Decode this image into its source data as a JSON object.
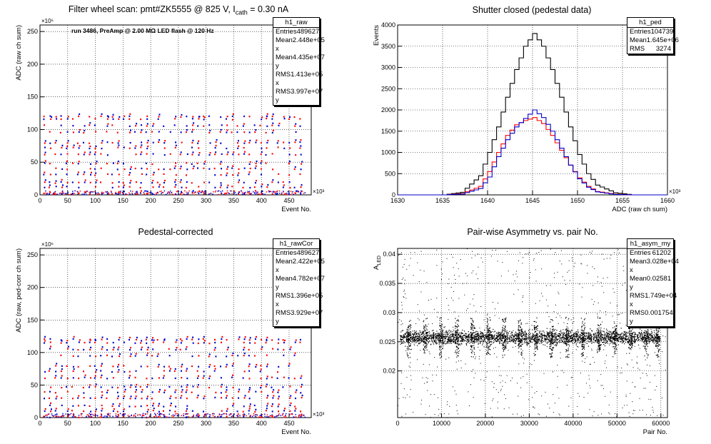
{
  "chart_data": [
    {
      "type": "scatter",
      "title_parts": {
        "a": "Filter wheel scan: pmt#ZK5555 @   825 V, I",
        "sub": "cath",
        "b": " = 0.30 nA"
      },
      "annotation": "run 3486, PreAmp @ 2.00 MΩ LED flash @  120 Hz",
      "ylabel": "ADC (raw ch sum)",
      "xlabel": "Event No.",
      "x_exponent": "×10³",
      "y_exponent": "×10⁶",
      "xlim": [
        0,
        490
      ],
      "ylim": [
        0,
        260
      ],
      "xticks": [
        0,
        50,
        100,
        150,
        200,
        250,
        300,
        350,
        400,
        450
      ],
      "yticks": [
        0,
        50,
        100,
        150,
        200,
        250
      ],
      "levels": [
        2,
        12,
        19,
        31,
        40,
        48,
        62,
        72,
        80,
        96,
        106,
        116,
        120
      ],
      "series": [
        {
          "values_from": "levels",
          "color": "#ff0000"
        },
        {
          "values_from": "levels",
          "color": "#0000cc"
        }
      ],
      "stats": {
        "name": "h1_raw",
        "rows": [
          [
            "Entries",
            "489627"
          ],
          [
            "Mean x",
            "2.448e+05"
          ],
          [
            "Mean y",
            "4.435e+07"
          ],
          [
            "RMS x",
            "1.413e+05"
          ],
          [
            "RMS y",
            "3.997e+07"
          ]
        ]
      }
    },
    {
      "type": "line",
      "title": "Shutter closed (pedestal data)",
      "ylabel": "Events",
      "xlabel": "ADC (raw ch sum)",
      "x_exponent": "×10³",
      "xlim": [
        1630,
        1660
      ],
      "ylim": [
        0,
        4000
      ],
      "xticks": [
        1630,
        1635,
        1640,
        1645,
        1650,
        1655,
        1660
      ],
      "yticks": [
        0,
        500,
        1000,
        1500,
        2000,
        2500,
        3000,
        3500,
        4000
      ],
      "x": [
        1635,
        1637,
        1639,
        1640,
        1641,
        1642,
        1643,
        1644,
        1645,
        1646,
        1647,
        1648,
        1649,
        1650,
        1651,
        1652,
        1654,
        1656
      ],
      "series": [
        {
          "color": "#000000",
          "values": [
            0,
            60,
            450,
            1000,
            1600,
            2300,
            2950,
            3500,
            3800,
            3500,
            2950,
            2300,
            1600,
            950,
            500,
            230,
            50,
            0
          ]
        },
        {
          "color": "#ff0000",
          "values": [
            0,
            30,
            200,
            550,
            1000,
            1400,
            1650,
            1750,
            1820,
            1680,
            1400,
            1050,
            700,
            400,
            200,
            80,
            15,
            0
          ]
        },
        {
          "color": "#0000cc",
          "values": [
            0,
            20,
            150,
            420,
            900,
            1300,
            1600,
            1800,
            2000,
            1820,
            1500,
            1100,
            700,
            380,
            180,
            70,
            10,
            0
          ]
        }
      ],
      "stats": {
        "name": "h1_ped",
        "rows": [
          [
            "Entries",
            "104739"
          ],
          [
            "Mean",
            "1.645e+06"
          ],
          [
            "RMS",
            "3274"
          ]
        ]
      }
    },
    {
      "type": "scatter",
      "title": "Pedestal-corrected",
      "ylabel": "ADC (raw, ped-corr ch sum)",
      "xlabel": "Event No.",
      "x_exponent": "×10³",
      "y_exponent": "×10⁶",
      "xlim": [
        0,
        490
      ],
      "ylim": [
        0,
        260
      ],
      "xticks": [
        0,
        50,
        100,
        150,
        200,
        250,
        300,
        350,
        400,
        450
      ],
      "yticks": [
        0,
        50,
        100,
        150,
        200,
        250
      ],
      "levels": [
        1,
        10,
        18,
        30,
        39,
        47,
        61,
        71,
        79,
        95,
        105,
        115,
        120
      ],
      "series": [
        {
          "values_from": "levels",
          "color": "#ff0000"
        },
        {
          "values_from": "levels",
          "color": "#0000cc"
        }
      ],
      "stats": {
        "name": "h1_rawCor",
        "rows": [
          [
            "Entries",
            "489627"
          ],
          [
            "Mean x",
            "2.422e+05"
          ],
          [
            "Mean y",
            "4.782e+07"
          ],
          [
            "RMS x",
            "1.396e+05"
          ],
          [
            "RMS y",
            "3.929e+07"
          ]
        ]
      }
    },
    {
      "type": "scatter",
      "title": "Pair-wise Asymmetry vs. pair No.",
      "ylabel_parts": {
        "a": "A",
        "sub": "LED"
      },
      "xlabel": "Pair No.",
      "xlim": [
        0,
        61500
      ],
      "ylim": [
        0.012,
        0.041
      ],
      "xticks": [
        0,
        10000,
        20000,
        30000,
        40000,
        50000,
        60000
      ],
      "yticks": [
        0.02,
        0.025,
        0.03,
        0.035,
        0.04
      ],
      "band_center": 0.0258,
      "band_halfwidth": 0.0008,
      "spike_x": [
        2500,
        6200,
        9800,
        13400,
        17000,
        20600,
        24200,
        27800,
        31400,
        35000,
        38600,
        42200,
        45800,
        49400,
        53000,
        56600,
        59200
      ],
      "series": [
        {
          "color": "#000000"
        }
      ],
      "stats": {
        "name": "h1_asym_my",
        "rows": [
          [
            "Entries",
            "61202"
          ],
          [
            "Mean x",
            "3.028e+04"
          ],
          [
            "Mean y",
            "0.02581"
          ],
          [
            "RMS x",
            "1.749e+04"
          ],
          [
            "RMS y",
            "0.001754"
          ]
        ]
      }
    }
  ]
}
